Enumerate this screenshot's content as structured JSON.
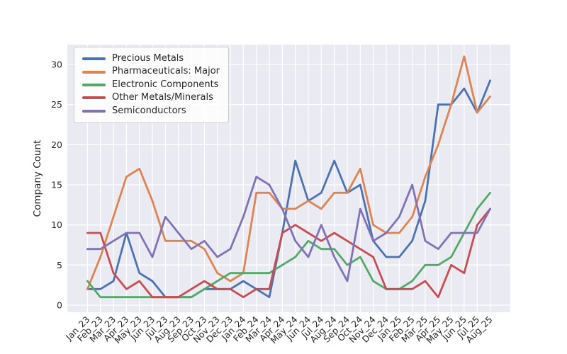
{
  "figure": {
    "background": "#ffffff",
    "plot_background": "#eaeaf2",
    "grid_color": "#ffffff",
    "text_color": "#262626"
  },
  "chart_data": {
    "type": "line",
    "title": "",
    "xlabel": "",
    "ylabel": "Company Count",
    "grid": true,
    "legend_position": "upper left",
    "ylim": [
      -1.6,
      33.4
    ],
    "y_ticks": [
      0,
      5,
      10,
      15,
      20,
      25,
      30
    ],
    "categories": [
      "Jan_23",
      "Feb_23",
      "Mar_23",
      "Apr_23",
      "May_23",
      "Jun_23",
      "Jul_23",
      "Aug_23",
      "Sep_23",
      "Oct_23",
      "Nov_23",
      "Dec_23",
      "Jan_24",
      "Feb_24",
      "Mar_24",
      "Apr_24",
      "May_24",
      "Jun_24",
      "Jul_24",
      "Aug_24",
      "Sep_24",
      "Oct_24",
      "Nov_24",
      "Dec_24",
      "Jan_25",
      "Feb_25",
      "Mar_25",
      "Apr_25",
      "May_25",
      "Jun_25",
      "Jul_25",
      "Aug_25"
    ],
    "series": [
      {
        "name": "Precious Metals",
        "color": "#4C72B0",
        "values": [
          2,
          2,
          3,
          9,
          4,
          3,
          1,
          1,
          1,
          2,
          2,
          2,
          3,
          2,
          1,
          9,
          18,
          13,
          14,
          18,
          14,
          15,
          8,
          6,
          6,
          8,
          13,
          25,
          25,
          27,
          24,
          28
        ]
      },
      {
        "name": "Pharmaceuticals: Major",
        "color": "#DD8452",
        "values": [
          2,
          6,
          11,
          16,
          17,
          13,
          8,
          8,
          8,
          7,
          4,
          3,
          4,
          14,
          14,
          12,
          12,
          13,
          12,
          14,
          14,
          17,
          10,
          9,
          9,
          11,
          16,
          20,
          25,
          31,
          24,
          26
        ]
      },
      {
        "name": "Electronic Components",
        "color": "#55A868",
        "values": [
          3,
          1,
          1,
          1,
          1,
          1,
          1,
          1,
          1,
          2,
          3,
          4,
          4,
          4,
          4,
          5,
          6,
          8,
          7,
          7,
          5,
          6,
          3,
          2,
          2,
          3,
          5,
          5,
          6,
          9,
          12,
          14
        ]
      },
      {
        "name": "Other Metals/Minerals",
        "color": "#C44E52",
        "values": [
          9,
          9,
          4,
          2,
          3,
          1,
          1,
          1,
          2,
          3,
          2,
          2,
          1,
          2,
          2,
          9,
          10,
          9,
          8,
          9,
          8,
          7,
          6,
          2,
          2,
          2,
          3,
          1,
          5,
          4,
          10,
          12
        ]
      },
      {
        "name": "Semiconductors",
        "color": "#8172B3",
        "values": [
          7,
          7,
          8,
          9,
          9,
          6,
          11,
          9,
          7,
          8,
          6,
          7,
          11,
          16,
          15,
          12,
          8,
          6,
          10,
          6,
          3,
          12,
          8,
          9,
          11,
          15,
          8,
          7,
          9,
          9,
          9,
          12
        ]
      }
    ]
  }
}
